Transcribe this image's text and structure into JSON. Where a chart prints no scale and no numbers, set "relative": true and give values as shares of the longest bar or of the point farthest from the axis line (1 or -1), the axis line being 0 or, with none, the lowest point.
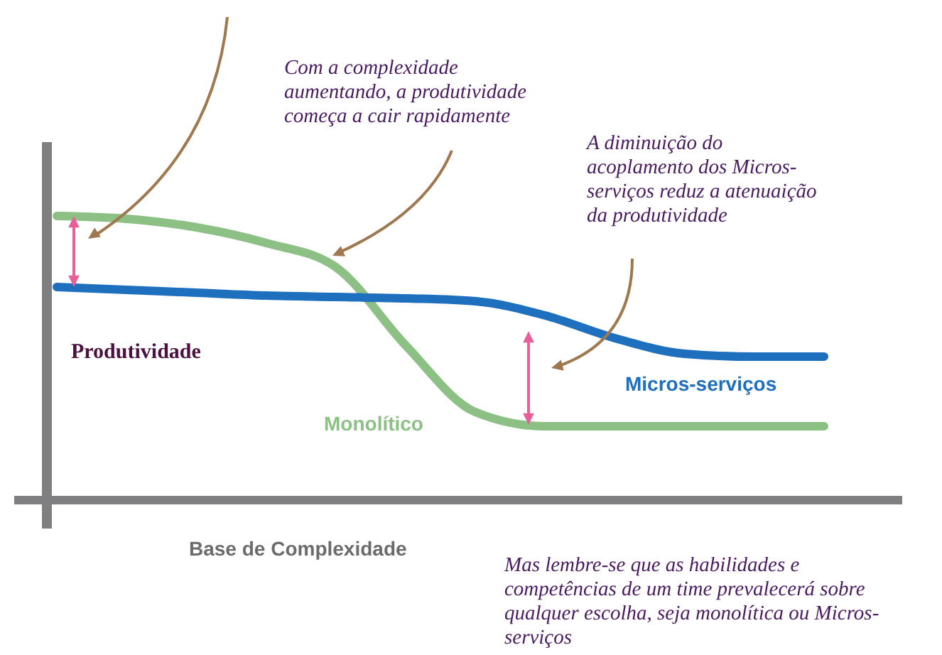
{
  "chart_data": {
    "type": "line",
    "relative": true,
    "xlabel": "Base de Complexidade",
    "ylabel": "Produtividade",
    "categories": [
      null,
      null,
      null,
      null,
      null,
      null,
      null,
      null,
      null,
      null,
      null,
      null
    ],
    "series": [
      {
        "name": "Monolítico",
        "color": "#8cc084",
        "values": [
          1.0,
          0.99,
          0.96,
          0.905,
          0.82,
          0.545,
          0.31,
          0.26,
          0.26,
          0.26,
          0.26,
          0.26
        ]
      },
      {
        "name": "Micros-serviços",
        "color": "#1f6fbf",
        "values": [
          0.75,
          0.74,
          0.73,
          0.72,
          0.715,
          0.71,
          0.7,
          0.65,
          0.57,
          0.515,
          0.505,
          0.505
        ]
      }
    ],
    "annotations": [
      "Com a complexidade\naumentando, a produtividade\ncomeça a cair rapidamente",
      "A diminuição do\nacoplamento dos Micros-\nserviços reduz a atenuaição\nda produtividade",
      "Mas lembre-se que as habilidades e\ncompetências de um time prevalecerá sobre\nqualquer escolha, seja monolítica ou Micros-\nserviços"
    ],
    "marker": "none",
    "line_style": "solid"
  }
}
